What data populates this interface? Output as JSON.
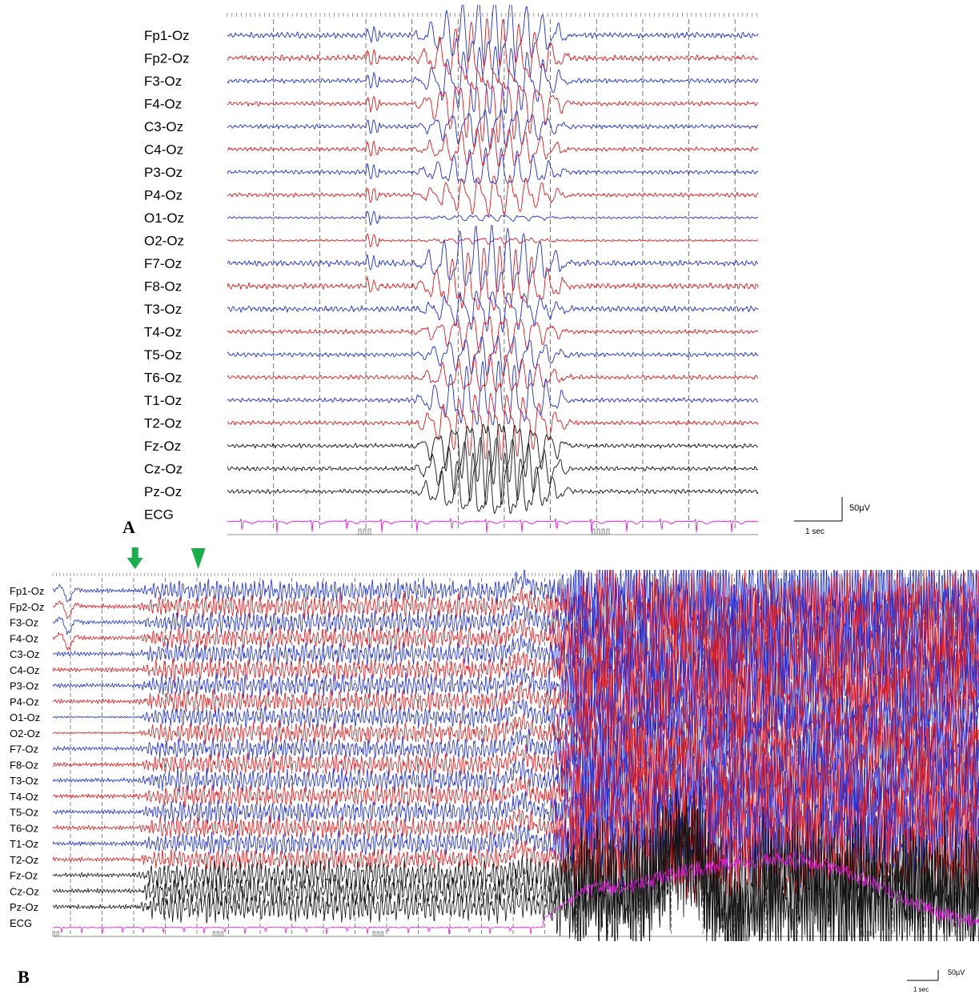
{
  "chart_data": [
    {
      "type": "line",
      "panel_label": "A",
      "channels": [
        "Fp1-Oz",
        "Fp2-Oz",
        "F3-Oz",
        "F4-Oz",
        "C3-Oz",
        "C4-Oz",
        "P3-Oz",
        "P4-Oz",
        "O1-Oz",
        "O2-Oz",
        "F7-Oz",
        "F8-Oz",
        "T3-Oz",
        "T4-Oz",
        "T5-Oz",
        "T6-Oz",
        "T1-Oz",
        "T2-Oz",
        "Fz-Oz",
        "Cz-Oz",
        "Pz-Oz",
        "ECG"
      ],
      "channel_colors": [
        "#1f2fd6",
        "#e0191b",
        "#1f2fd6",
        "#e0191b",
        "#1f2fd6",
        "#e0191b",
        "#1f2fd6",
        "#e0191b",
        "#1f2fd6",
        "#e0191b",
        "#1f2fd6",
        "#e0191b",
        "#1f2fd6",
        "#e0191b",
        "#1f2fd6",
        "#e0191b",
        "#1f2fd6",
        "#e0191b",
        "#111111",
        "#111111",
        "#111111",
        "#e21ee2"
      ],
      "duration_sec": 11.5,
      "grid": "dashed vertical lines every 1 sec",
      "discharge_window_sec": [
        4.0,
        7.5
      ],
      "scale_bar": {
        "amplitude": "50µV",
        "time": "1 sec"
      }
    },
    {
      "type": "line",
      "panel_label": "B",
      "channels": [
        "Fp1-Oz",
        "Fp2-Oz",
        "F3-Oz",
        "F4-Oz",
        "C3-Oz",
        "C4-Oz",
        "P3-Oz",
        "P4-Oz",
        "O1-Oz",
        "O2-Oz",
        "F7-Oz",
        "F8-Oz",
        "T3-Oz",
        "T4-Oz",
        "T5-Oz",
        "T6-Oz",
        "T1-Oz",
        "T2-Oz",
        "Fz-Oz",
        "Cz-Oz",
        "Pz-Oz",
        "ECG"
      ],
      "channel_colors": [
        "#1f2fd6",
        "#e0191b",
        "#1f2fd6",
        "#e0191b",
        "#1f2fd6",
        "#e0191b",
        "#1f2fd6",
        "#e0191b",
        "#1f2fd6",
        "#e0191b",
        "#1f2fd6",
        "#e0191b",
        "#1f2fd6",
        "#e0191b",
        "#1f2fd6",
        "#e0191b",
        "#1f2fd6",
        "#e0191b",
        "#111111",
        "#111111",
        "#111111",
        "#e21ee2"
      ],
      "duration_sec": 30,
      "grid": "dashed vertical lines every 1 sec",
      "markers": [
        {
          "kind": "arrow",
          "color": "#19b04b",
          "time_sec": 2.6
        },
        {
          "kind": "arrowhead",
          "color": "#19b04b",
          "time_sec": 4.6
        }
      ],
      "seizure_onset_sec": 2.6,
      "high_amplitude_from_sec": 15.5,
      "scale_bar": {
        "amplitude": "50µV",
        "time": "1 sec"
      }
    }
  ]
}
